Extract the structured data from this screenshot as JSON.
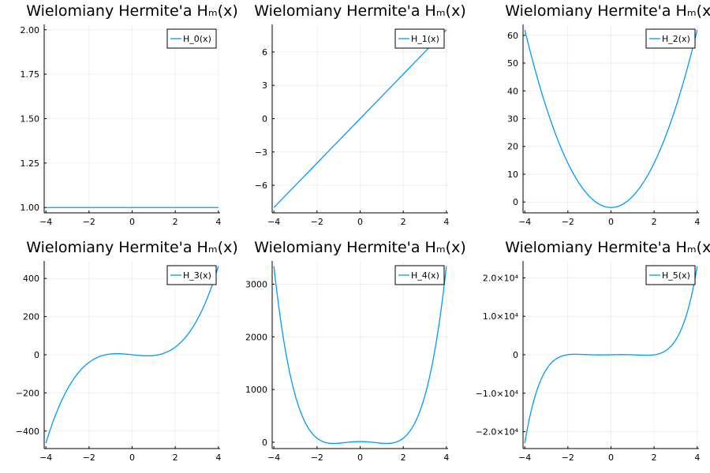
{
  "figure": {
    "title_text": "Wielomiany Hermite'a Hₘ(x)",
    "line_color": "#009AFA",
    "grid": true,
    "legend_position": "top-right"
  },
  "chart_data": [
    {
      "type": "line",
      "title": "Wielomiany Hermite'a Hₘ(x)",
      "series": [
        {
          "name": "H_0(x)",
          "x": [
            -4,
            -3,
            -2,
            -1,
            0,
            1,
            2,
            3,
            4
          ],
          "y": [
            1,
            1,
            1,
            1,
            1,
            1,
            1,
            1,
            1
          ]
        }
      ],
      "xlim": [
        -4,
        4
      ],
      "ylim": [
        1,
        2
      ],
      "xticks": [
        "-4",
        "-2",
        "0",
        "2",
        "4"
      ],
      "yticks": [
        "1.00",
        "1.25",
        "1.50",
        "1.75",
        "2.00"
      ]
    },
    {
      "type": "line",
      "title": "Wielomiany Hermite'a Hₘ(x)",
      "series": [
        {
          "name": "H_1(x)",
          "x": [
            -4,
            -3,
            -2,
            -1,
            0,
            1,
            2,
            3,
            4
          ],
          "y": [
            -8,
            -6,
            -4,
            -2,
            0,
            2,
            4,
            6,
            8
          ]
        }
      ],
      "xlim": [
        -4,
        4
      ],
      "ylim": [
        -8,
        8
      ],
      "xticks": [
        "-4",
        "-2",
        "0",
        "2",
        "4"
      ],
      "yticks": [
        "-6",
        "-3",
        "0",
        "3",
        "6"
      ]
    },
    {
      "type": "line",
      "title": "Wielomiany Hermite'a Hₘ(x)",
      "series": [
        {
          "name": "H_2(x)",
          "x": [
            -4,
            -3,
            -2,
            -1,
            0,
            1,
            2,
            3,
            4
          ],
          "y": [
            62,
            34,
            14,
            2,
            -2,
            2,
            14,
            34,
            62
          ]
        }
      ],
      "xlim": [
        -4,
        4
      ],
      "ylim": [
        -2,
        62
      ],
      "xticks": [
        "-4",
        "-2",
        "0",
        "2",
        "4"
      ],
      "yticks": [
        "0",
        "10",
        "20",
        "30",
        "40",
        "50",
        "60"
      ]
    },
    {
      "type": "line",
      "title": "Wielomiany Hermite'a Hₘ(x)",
      "series": [
        {
          "name": "H_3(x)",
          "x": [
            -4,
            -3,
            -2,
            -1,
            0,
            1,
            2,
            3,
            4
          ],
          "y": [
            -464,
            -180,
            -40,
            4,
            0,
            -4,
            40,
            180,
            464
          ]
        }
      ],
      "xlim": [
        -4,
        4
      ],
      "ylim": [
        -464,
        464
      ],
      "xticks": [
        "-4",
        "-2",
        "0",
        "2",
        "4"
      ],
      "yticks": [
        "-400",
        "-200",
        "0",
        "200",
        "400"
      ]
    },
    {
      "type": "line",
      "title": "Wielomiany Hermite'a Hₘ(x)",
      "series": [
        {
          "name": "H_4(x)",
          "x": [
            -4,
            -3,
            -2,
            -1,
            0,
            1,
            2,
            3,
            4
          ],
          "y": [
            3340,
            876,
            76,
            -20,
            12,
            -20,
            76,
            876,
            3340
          ]
        }
      ],
      "xlim": [
        -4,
        4
      ],
      "ylim": [
        -20,
        3340
      ],
      "xticks": [
        "-4",
        "-2",
        "0",
        "2",
        "4"
      ],
      "yticks": [
        "0",
        "1000",
        "2000",
        "3000"
      ]
    },
    {
      "type": "line",
      "title": "Wielomiany Hermite'a Hₘ(x)",
      "series": [
        {
          "name": "H_5(x)",
          "x": [
            -4,
            -3,
            -2,
            -1,
            0,
            1,
            2,
            3,
            4
          ],
          "y": [
            -23008,
            -3816,
            -16,
            8,
            0,
            -8,
            16,
            3816,
            23008
          ]
        }
      ],
      "xlim": [
        -4,
        4
      ],
      "ylim": [
        -23008,
        23008
      ],
      "xticks": [
        "-4",
        "-2",
        "0",
        "2",
        "4"
      ],
      "yticks": [
        "-2.0×10⁴",
        "-1.0×10⁴",
        "0",
        "1.0×10⁴",
        "2.0×10⁴"
      ]
    }
  ]
}
